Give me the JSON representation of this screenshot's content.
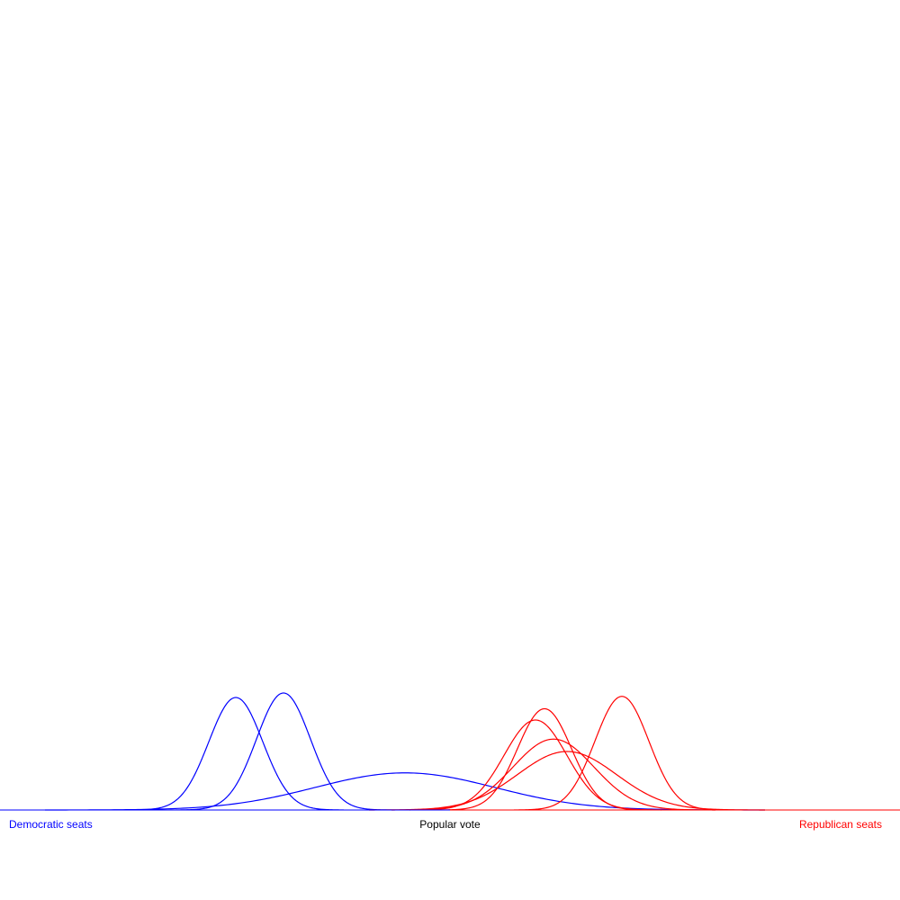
{
  "chart_data": {
    "type": "line",
    "title": "",
    "xlabel": "",
    "ylabel": "",
    "grid": false,
    "x_range": [
      -1,
      1
    ],
    "labels": {
      "left": "Democratic seats",
      "center": "Popular vote",
      "right": "Republican seats"
    },
    "colors": {
      "democratic": "#0000ff",
      "republican": "#ff0000",
      "center_label": "#000000"
    },
    "series": [
      {
        "party": "democratic",
        "mean": -0.476,
        "sd": 0.06,
        "peak": 1.0
      },
      {
        "party": "democratic",
        "mean": -0.37,
        "sd": 0.06,
        "peak": 1.04
      },
      {
        "party": "democratic",
        "mean": -0.1,
        "sd": 0.2,
        "peak": 0.33
      },
      {
        "party": "republican",
        "mean": 0.21,
        "sd": 0.06,
        "peak": 0.9
      },
      {
        "party": "republican",
        "mean": 0.19,
        "sd": 0.07,
        "peak": 0.8
      },
      {
        "party": "republican",
        "mean": 0.23,
        "sd": 0.09,
        "peak": 0.63
      },
      {
        "party": "republican",
        "mean": 0.26,
        "sd": 0.11,
        "peak": 0.52
      },
      {
        "party": "republican",
        "mean": 0.382,
        "sd": 0.06,
        "peak": 1.01
      }
    ]
  }
}
